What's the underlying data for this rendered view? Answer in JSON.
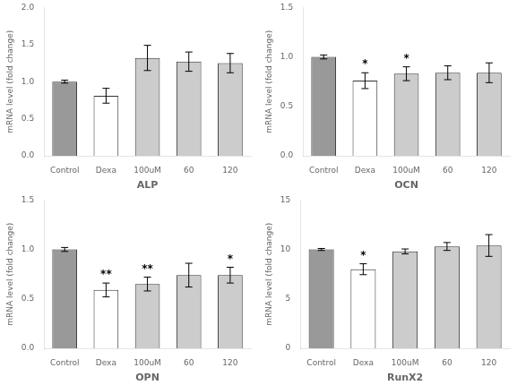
{
  "chart_data": [
    {
      "type": "bar",
      "xlabel": "ALP",
      "ylabel": "mRNA level (fold change)",
      "categories": [
        "Control",
        "Dexa",
        "100uM",
        "60",
        "120"
      ],
      "values": [
        1.0,
        0.81,
        1.32,
        1.27,
        1.25
      ],
      "errors": [
        0.02,
        0.1,
        0.17,
        0.13,
        0.13
      ],
      "colors": [
        "#999999",
        "#ffffff",
        "#cccccc",
        "#cccccc",
        "#cccccc"
      ],
      "ylim": [
        0,
        2.0
      ],
      "yticks": [
        {
          "value": 0.0,
          "label": "0.0"
        },
        {
          "value": 0.5,
          "label": "0.5"
        },
        {
          "value": 1.0,
          "label": "1.0"
        },
        {
          "value": 1.5,
          "label": "1.5"
        },
        {
          "value": 2.0,
          "label": "2.0"
        }
      ],
      "grid": false
    },
    {
      "type": "bar",
      "xlabel": "OCN",
      "ylabel": "mRNA level (fold change)",
      "categories": [
        "Control",
        "Dexa",
        "100uM",
        "60",
        "120"
      ],
      "values": [
        1.0,
        0.76,
        0.83,
        0.84,
        0.84
      ],
      "errors": [
        0.02,
        0.08,
        0.07,
        0.07,
        0.1
      ],
      "colors": [
        "#999999",
        "#ffffff",
        "#cccccc",
        "#cccccc",
        "#cccccc"
      ],
      "ylim": [
        0,
        1.5
      ],
      "yticks": [
        {
          "value": 0.0,
          "label": "0.0"
        },
        {
          "value": 0.5,
          "label": "0.5"
        },
        {
          "value": 1.0,
          "label": "1.0"
        },
        {
          "value": 1.5,
          "label": "1.5"
        }
      ],
      "annotations": [
        {
          "x": "Dexa",
          "text": "*"
        },
        {
          "x": "100uM",
          "text": "*"
        }
      ],
      "grid": false
    },
    {
      "type": "bar",
      "xlabel": "OPN",
      "ylabel": "mRNA level (fold change)",
      "categories": [
        "Control",
        "Dexa",
        "100uM",
        "60",
        "120"
      ],
      "values": [
        1.0,
        0.59,
        0.65,
        0.74,
        0.74
      ],
      "errors": [
        0.02,
        0.07,
        0.07,
        0.12,
        0.08
      ],
      "colors": [
        "#999999",
        "#ffffff",
        "#cccccc",
        "#cccccc",
        "#cccccc"
      ],
      "ylim": [
        0,
        1.5
      ],
      "yticks": [
        {
          "value": 0.0,
          "label": "0.0"
        },
        {
          "value": 0.5,
          "label": "0.5"
        },
        {
          "value": 1.0,
          "label": "1.0"
        },
        {
          "value": 1.5,
          "label": "1.5"
        }
      ],
      "annotations": [
        {
          "x": "Dexa",
          "text": "**"
        },
        {
          "x": "100uM",
          "text": "**"
        },
        {
          "x": "120",
          "text": "*"
        }
      ],
      "grid": false
    },
    {
      "type": "bar",
      "xlabel": "RunX2",
      "ylabel": "mRNA level (fold change)",
      "categories": [
        "Control",
        "Dexa",
        "100uM",
        "60",
        "120"
      ],
      "values": [
        10.0,
        8.0,
        9.8,
        10.3,
        10.4
      ],
      "errors": [
        0.1,
        0.55,
        0.25,
        0.4,
        1.1
      ],
      "colors": [
        "#999999",
        "#ffffff",
        "#cccccc",
        "#cccccc",
        "#cccccc"
      ],
      "ylim": [
        0,
        15
      ],
      "yticks": [
        0,
        5,
        10,
        15
      ],
      "annotations": [
        {
          "x": "Dexa",
          "text": "*"
        }
      ],
      "grid": false
    }
  ]
}
